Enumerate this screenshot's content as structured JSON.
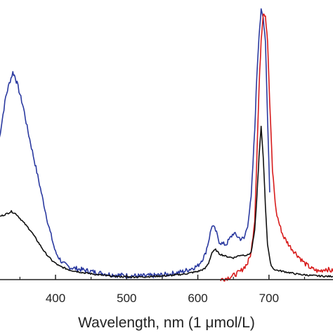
{
  "chart_data": {
    "type": "line",
    "title": "",
    "xlabel": "Wavelength, nm (1 μmol/L)",
    "ylabel": "",
    "xlim": [
      320,
      790
    ],
    "ylim": [
      0,
      1.0
    ],
    "x_ticks": [
      400,
      500,
      600,
      700
    ],
    "x_tick_labels": [
      "400",
      "500",
      "600",
      "700"
    ],
    "grid": false,
    "legend": "none",
    "series": [
      {
        "color": "#2b3aa0",
        "x": [
          320,
          330,
          335,
          340,
          343,
          346,
          350,
          355,
          360,
          370,
          380,
          390,
          400,
          410,
          420,
          440,
          460,
          480,
          500,
          520,
          540,
          560,
          580,
          600,
          610,
          615,
          620,
          625,
          630,
          635,
          640,
          645,
          650,
          655,
          660,
          665,
          670,
          675,
          680,
          683,
          686,
          689,
          692,
          695,
          698,
          701
        ],
        "y": [
          0.5,
          0.67,
          0.72,
          0.76,
          0.745,
          0.72,
          0.68,
          0.63,
          0.56,
          0.44,
          0.32,
          0.2,
          0.1,
          0.06,
          0.045,
          0.035,
          0.025,
          0.018,
          0.015,
          0.013,
          0.015,
          0.02,
          0.03,
          0.05,
          0.09,
          0.14,
          0.2,
          0.18,
          0.14,
          0.13,
          0.13,
          0.15,
          0.17,
          0.16,
          0.15,
          0.15,
          0.2,
          0.3,
          0.55,
          0.75,
          0.9,
          0.985,
          0.96,
          0.88,
          0.6,
          0.32
        ]
      },
      {
        "color": "#d81c1c",
        "x": [
          632,
          640,
          650,
          660,
          670,
          675,
          680,
          683,
          686,
          689,
          692,
          695,
          698,
          701,
          705,
          710,
          715,
          720,
          730,
          740,
          750,
          760,
          770,
          780,
          790
        ],
        "y": [
          0.0,
          0.005,
          0.015,
          0.03,
          0.06,
          0.1,
          0.22,
          0.45,
          0.7,
          0.88,
          0.98,
          0.97,
          0.88,
          0.65,
          0.4,
          0.25,
          0.2,
          0.16,
          0.12,
          0.09,
          0.06,
          0.04,
          0.03,
          0.04,
          0.03
        ]
      },
      {
        "color": "#111111",
        "x": [
          320,
          330,
          338,
          345,
          355,
          365,
          375,
          385,
          395,
          405,
          420,
          440,
          460,
          480,
          500,
          520,
          540,
          560,
          580,
          600,
          610,
          615,
          620,
          625,
          630,
          640,
          650,
          660,
          670,
          675,
          680,
          683,
          686,
          689,
          692,
          695,
          698,
          702,
          706,
          710,
          720,
          730,
          740,
          760,
          780,
          790
        ],
        "y": [
          0.23,
          0.24,
          0.25,
          0.24,
          0.21,
          0.18,
          0.14,
          0.1,
          0.07,
          0.05,
          0.035,
          0.025,
          0.018,
          0.012,
          0.01,
          0.01,
          0.012,
          0.015,
          0.02,
          0.03,
          0.04,
          0.06,
          0.1,
          0.11,
          0.095,
          0.085,
          0.08,
          0.09,
          0.09,
          0.1,
          0.18,
          0.3,
          0.45,
          0.56,
          0.45,
          0.27,
          0.13,
          0.06,
          0.04,
          0.035,
          0.03,
          0.025,
          0.02,
          0.015,
          0.012,
          0.012
        ]
      }
    ]
  }
}
